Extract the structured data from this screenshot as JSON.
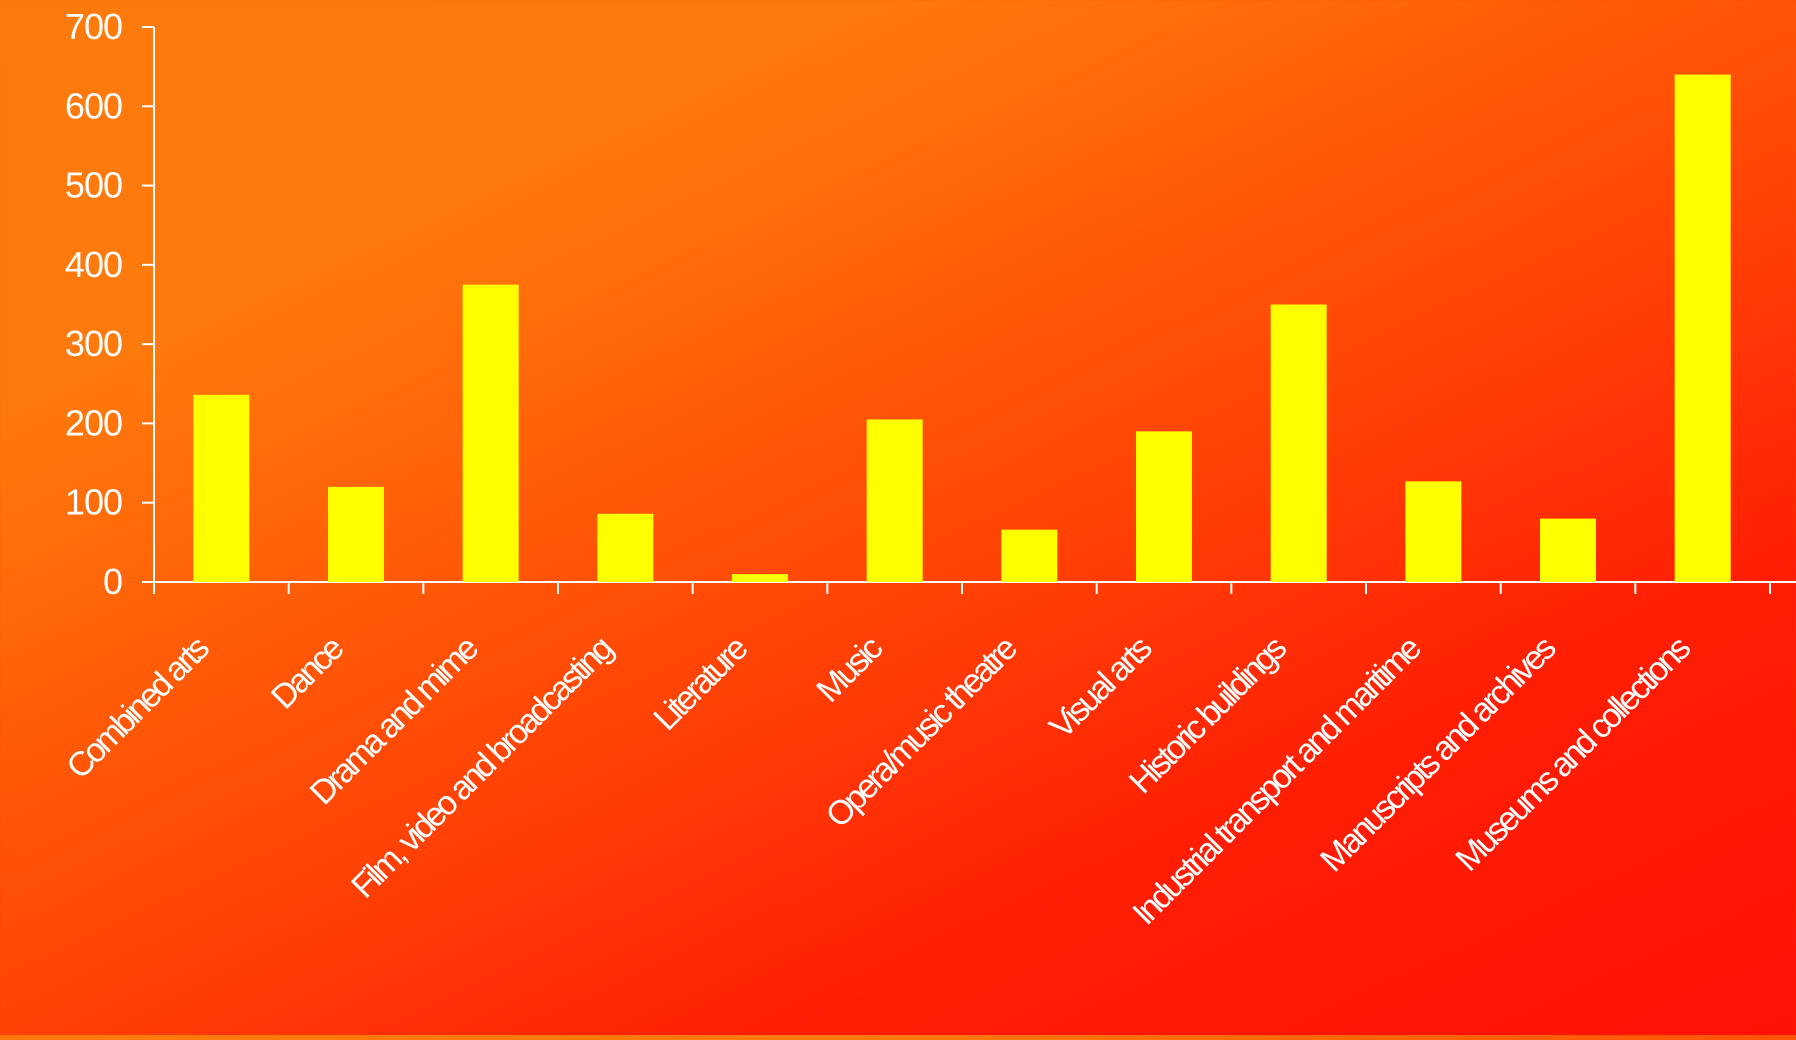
{
  "colors": {
    "bar": "#ffff00",
    "axis": "#ffffff",
    "text": "#ffffff",
    "background_start": "#ff7a0c",
    "background_end": "#ff1004"
  },
  "chart_data": {
    "type": "bar",
    "title": "",
    "xlabel": "",
    "ylabel": "",
    "ylim": [
      0,
      700
    ],
    "yticks": [
      0,
      100,
      200,
      300,
      400,
      500,
      600,
      700
    ],
    "grid": false,
    "legend": "none",
    "categories": [
      "Combined arts",
      "Dance",
      "Drama and mime",
      "Film, video and broadcasting",
      "Literature",
      "Music",
      "Opera/music theatre",
      "Visual arts",
      "Historic buildings",
      "Industrial transport and maritime",
      "Manuscripts and archives",
      "Museums and collections"
    ],
    "values": [
      236,
      120,
      375,
      86,
      10,
      205,
      66,
      190,
      350,
      127,
      80,
      640
    ]
  }
}
